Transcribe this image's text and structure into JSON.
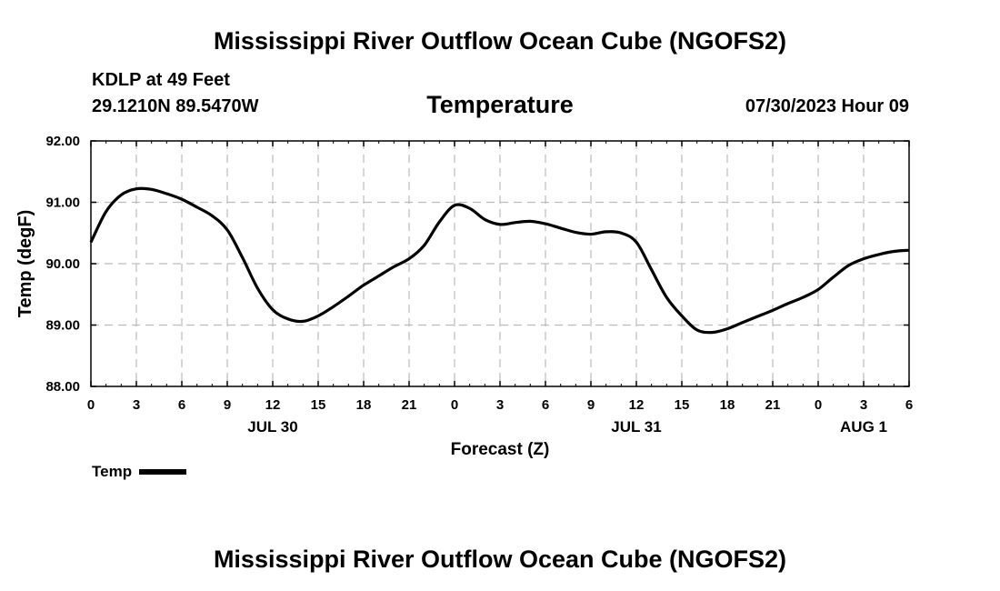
{
  "header": {
    "main_title": "Mississippi River Outflow Ocean Cube (NGOFS2)",
    "station": "KDLP at 49 Feet",
    "coords": "29.1210N  89.5470W",
    "chart_title": "Temperature",
    "datetime": "07/30/2023 Hour 09"
  },
  "footer": {
    "title": "Mississippi River Outflow Ocean Cube (NGOFS2)"
  },
  "legend": {
    "label": "Temp"
  },
  "chart_data": {
    "type": "line",
    "title": "Temperature",
    "xlabel": "Forecast (Z)",
    "ylabel": "Temp (degF)",
    "xlim": [
      0,
      54
    ],
    "ylim": [
      88.0,
      92.0
    ],
    "yticks": [
      "88.00",
      "89.00",
      "90.00",
      "91.00",
      "92.00"
    ],
    "xticks": [
      "0",
      "3",
      "6",
      "9",
      "12",
      "15",
      "18",
      "21",
      "0",
      "3",
      "6",
      "9",
      "12",
      "15",
      "18",
      "21",
      "0",
      "3",
      "6"
    ],
    "date_labels": [
      {
        "label": "JUL 30",
        "hour": 12
      },
      {
        "label": "JUL 31",
        "hour": 36
      },
      {
        "label": "AUG 1",
        "hour": 51
      }
    ],
    "grid": true,
    "series": [
      {
        "name": "Temp",
        "x": [
          0,
          1,
          2,
          3,
          4,
          5,
          6,
          7,
          8,
          9,
          10,
          11,
          12,
          13,
          14,
          15,
          16,
          17,
          18,
          19,
          20,
          21,
          22,
          23,
          24,
          25,
          26,
          27,
          28,
          29,
          30,
          31,
          32,
          33,
          34,
          35,
          36,
          37,
          38,
          39,
          40,
          41,
          42,
          43,
          44,
          45,
          46,
          47,
          48,
          49,
          50,
          51,
          52,
          53,
          54
        ],
        "values": [
          90.35,
          90.85,
          91.12,
          91.22,
          91.21,
          91.14,
          91.05,
          90.92,
          90.78,
          90.55,
          90.1,
          89.6,
          89.25,
          89.1,
          89.06,
          89.15,
          89.3,
          89.47,
          89.65,
          89.8,
          89.95,
          90.08,
          90.3,
          90.68,
          90.95,
          90.9,
          90.72,
          90.64,
          90.67,
          90.69,
          90.65,
          90.58,
          90.51,
          90.48,
          90.52,
          90.5,
          90.35,
          89.9,
          89.45,
          89.15,
          88.92,
          88.88,
          88.94,
          89.04,
          89.14,
          89.24,
          89.35,
          89.45,
          89.58,
          89.78,
          89.97,
          90.08,
          90.15,
          90.2,
          90.22
        ]
      }
    ]
  }
}
